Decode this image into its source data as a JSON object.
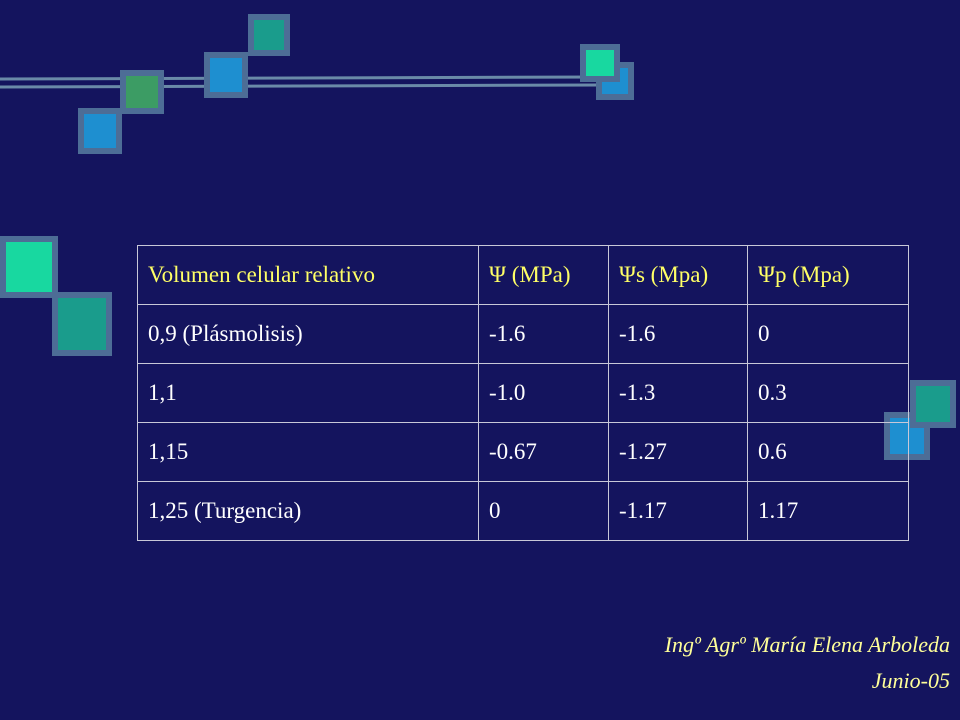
{
  "table": {
    "header": [
      "Volumen celular relativo",
      "Ψ (MPa)",
      "Ψs (Mpa)",
      "Ψp (Mpa)"
    ],
    "rows": [
      [
        "0,9 (Plásmolisis)",
        "-1.6",
        "-1.6",
        "0"
      ],
      [
        "1,1",
        "-1.0",
        "-1.3",
        "0.3"
      ],
      [
        "1,15",
        "-0.67",
        "-1.27",
        "0.6"
      ],
      [
        "1,25 (Turgencia)",
        "0",
        "-1.17",
        "1.17"
      ]
    ]
  },
  "footer": {
    "author": "Ingº Agrº María Elena Arboleda",
    "date": "Junio-05"
  }
}
